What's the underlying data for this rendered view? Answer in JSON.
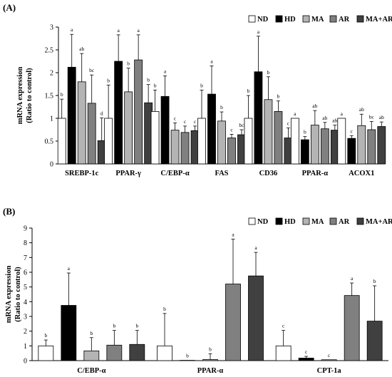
{
  "chart_data": [
    {
      "type": "bar",
      "panel_label": "(A)",
      "categories": [
        "SREBP-1c",
        "PPAR-γ",
        "C/EBP-α",
        "FAS",
        "CD36",
        "PPAR-α",
        "ACOX1"
      ],
      "ylabel_line1": "mRNA expression",
      "ylabel_line2": "(Ratio to control)",
      "ylim": [
        0,
        3
      ],
      "yticks": [
        0,
        0.5,
        1,
        1.5,
        2,
        2.5,
        3
      ],
      "ytick_labels": [
        "0",
        "0.5",
        "1",
        "1.5",
        "2",
        "2.5",
        "3"
      ],
      "legend_position": "top-right",
      "series": [
        {
          "name": "ND",
          "color": "#ffffff",
          "values": [
            1.0,
            1.0,
            1.15,
            1.0,
            1.0,
            1.0,
            1.0
          ],
          "errors": [
            0.42,
            0.73,
            0.47,
            0.62,
            0.5,
            0.0,
            0.0
          ],
          "letters": [
            "b",
            "b",
            "b",
            "b",
            "b",
            "a",
            "a"
          ]
        },
        {
          "name": "HD",
          "color": "#000000",
          "values": [
            2.12,
            2.25,
            1.48,
            1.53,
            2.02,
            0.53,
            0.56
          ],
          "errors": [
            0.72,
            0.58,
            0.45,
            0.62,
            0.78,
            0.07,
            0.06
          ],
          "letters": [
            "a",
            "a",
            "a",
            "a",
            "a",
            "b",
            "c"
          ]
        },
        {
          "name": "MA",
          "color": "#b4b4b4",
          "values": [
            1.8,
            1.58,
            0.74,
            0.94,
            1.41,
            0.85,
            0.84
          ],
          "errors": [
            0.62,
            0.52,
            0.16,
            0.2,
            0.5,
            0.32,
            0.25
          ],
          "letters": [
            "ab",
            "b",
            "c",
            "b",
            "b",
            "ab",
            "ab"
          ]
        },
        {
          "name": "AR",
          "color": "#808080",
          "values": [
            1.33,
            2.28,
            0.69,
            0.57,
            1.15,
            0.77,
            0.75
          ],
          "errors": [
            0.62,
            0.55,
            0.14,
            0.08,
            0.23,
            0.14,
            0.18
          ],
          "letters": [
            "bc",
            "a",
            "c",
            "c",
            "b",
            "ab",
            "bc"
          ]
        },
        {
          "name": "MA+AR",
          "color": "#404040",
          "values": [
            0.51,
            1.34,
            0.73,
            0.64,
            0.57,
            0.74,
            0.82
          ],
          "errors": [
            0.5,
            0.4,
            0.1,
            0.11,
            0.22,
            0.11,
            0.1
          ],
          "letters": [
            "d",
            "b",
            "c",
            "bc",
            "c",
            "ab",
            "ab"
          ]
        }
      ]
    },
    {
      "type": "bar",
      "panel_label": "(B)",
      "categories": [
        "C/EBP-α",
        "PPAR-α",
        "CPT-1a"
      ],
      "ylabel_line1": "mRNA expression",
      "ylabel_line2": "(Ratio to control)",
      "ylim": [
        0,
        9
      ],
      "yticks": [
        0,
        1,
        2,
        3,
        4,
        5,
        6,
        7,
        8,
        9
      ],
      "ytick_labels": [
        "0",
        "1",
        "2",
        "3",
        "4",
        "5",
        "6",
        "7",
        "8",
        "9"
      ],
      "legend_position": "top-right",
      "series": [
        {
          "name": "ND",
          "color": "#ffffff",
          "values": [
            1.0,
            1.0,
            1.0
          ],
          "errors": [
            0.4,
            2.2,
            1.05
          ],
          "letters": [
            "b",
            "b",
            "c"
          ]
        },
        {
          "name": "HD",
          "color": "#000000",
          "values": [
            3.75,
            0.02,
            0.17
          ],
          "errors": [
            2.2,
            0.0,
            0.12
          ],
          "letters": [
            "a",
            "b",
            "c"
          ]
        },
        {
          "name": "MA",
          "color": "#b4b4b4",
          "values": [
            0.66,
            0.07,
            0.06
          ],
          "errors": [
            0.9,
            0.4,
            0.0
          ],
          "letters": [
            "b",
            "b",
            "c"
          ]
        },
        {
          "name": "AR",
          "color": "#808080",
          "values": [
            1.05,
            5.2,
            4.42
          ],
          "errors": [
            1.0,
            3.05,
            0.85
          ],
          "letters": [
            "b",
            "a",
            "a"
          ]
        },
        {
          "name": "MA+AR",
          "color": "#404040",
          "values": [
            1.1,
            5.75,
            2.68
          ],
          "errors": [
            0.95,
            1.6,
            2.4
          ],
          "letters": [
            "b",
            "a",
            "b"
          ]
        }
      ]
    }
  ]
}
